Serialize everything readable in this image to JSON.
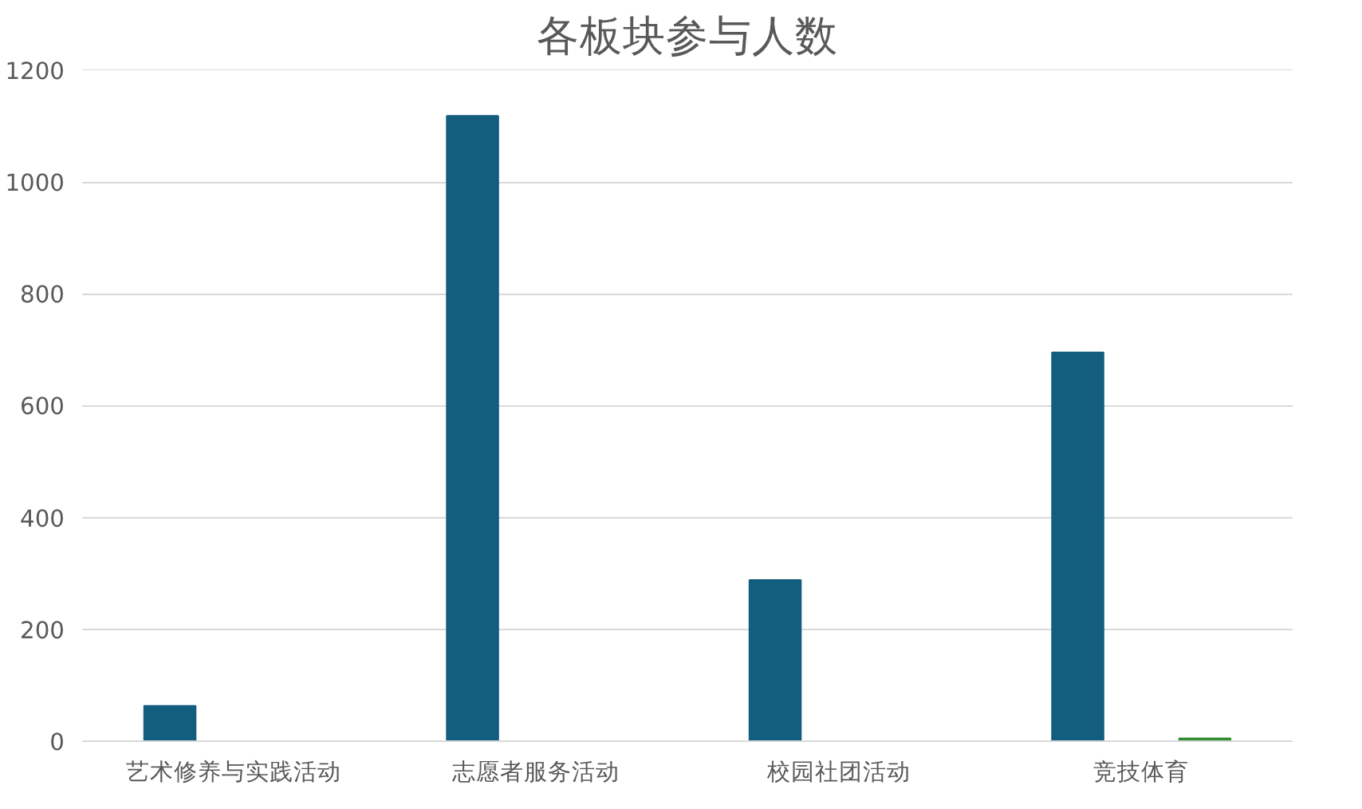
{
  "chart_data": {
    "type": "bar",
    "title": "各板块参与人数",
    "categories": [
      "艺术修养与实践活动",
      "志愿者服务活动",
      "校园社团活动",
      "竞技体育"
    ],
    "series": [
      {
        "color": "#135e7f",
        "values": [
          63,
          1118,
          288,
          695
        ]
      },
      {
        "color": "#2e8b2e",
        "values": [
          0,
          0,
          0,
          5
        ]
      }
    ],
    "ylim": [
      0,
      1200
    ],
    "yticks": [
      0,
      200,
      400,
      600,
      800,
      1000,
      1200
    ],
    "grid": "y"
  }
}
